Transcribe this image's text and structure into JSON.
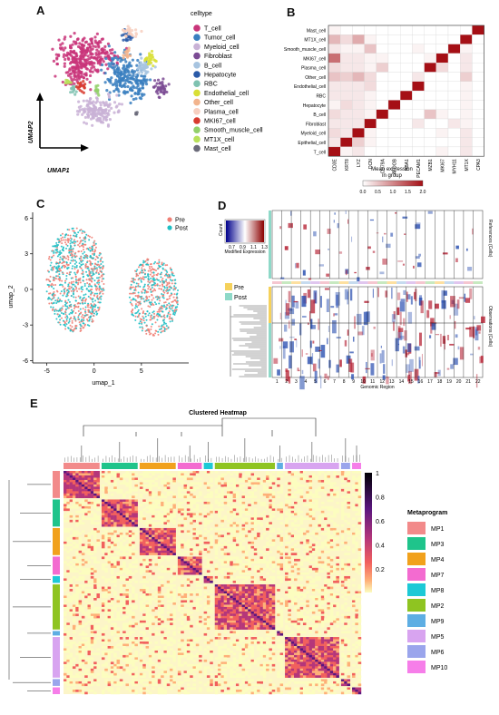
{
  "panels": {
    "a": "A",
    "b": "B",
    "c": "C",
    "d": "D",
    "e": "E"
  },
  "panel_a": {
    "legend_title": "celltype",
    "xlabel": "UMAP1",
    "ylabel": "UMAP2",
    "celltypes": [
      {
        "label": "T_cell",
        "color": "#c9357a"
      },
      {
        "label": "Tumor_cell",
        "color": "#3a7fbf"
      },
      {
        "label": "Myeloid_cell",
        "color": "#c9b2d6"
      },
      {
        "label": "Fibroblast",
        "color": "#7b4b94"
      },
      {
        "label": "B_cell",
        "color": "#a7c4e0"
      },
      {
        "label": "Hepatocyte",
        "color": "#2a5aa8"
      },
      {
        "label": "RBC",
        "color": "#7fc2b0"
      },
      {
        "label": "Endothelial_cell",
        "color": "#d9df35"
      },
      {
        "label": "Other_cell",
        "color": "#f2b48d"
      },
      {
        "label": "Plasma_cell",
        "color": "#f7cfc0"
      },
      {
        "label": "MKI67_cell",
        "color": "#d83b2f"
      },
      {
        "label": "Smooth_muscle_cell",
        "color": "#93d06a"
      },
      {
        "label": "MT1X_cell",
        "color": "#b8e15a"
      },
      {
        "label": "Mast_cell",
        "color": "#6b6b7a"
      }
    ]
  },
  "chart_data": [
    {
      "type": "heatmap",
      "panel": "B",
      "rows": [
        "Mast_cell",
        "MT1X_cell",
        "Smooth_muscle_cell",
        "MKI67_cell",
        "Plasma_cell",
        "Other_cell",
        "Endothelial_cell",
        "RBC",
        "Hepatocyte",
        "B_cell",
        "Fibroblast",
        "Myeloid_cell",
        "Epithelial_cell",
        "T_cell"
      ],
      "columns": [
        "CD3E",
        "KRT8",
        "LYZ",
        "DCN",
        "CD79A",
        "ALDOB",
        "HBA1",
        "PECAM1",
        "MZB1",
        "MKI67",
        "MYH11",
        "MT1X",
        "CPA3"
      ],
      "values": [
        [
          0.1,
          0,
          0,
          0,
          0,
          0,
          0,
          0,
          0,
          0,
          0,
          0,
          2.0
        ],
        [
          0.6,
          0.3,
          0.7,
          0.1,
          0,
          0,
          0,
          0,
          0,
          0,
          0,
          2.0,
          0
        ],
        [
          0.2,
          0.1,
          0.1,
          0.5,
          0,
          0,
          0,
          0.1,
          0,
          0,
          2.0,
          0.1,
          0
        ],
        [
          1.2,
          0.2,
          0.2,
          0.1,
          0.1,
          0,
          0,
          0,
          0.1,
          2.0,
          0,
          0.2,
          0
        ],
        [
          0.3,
          0.2,
          0.2,
          0.1,
          0.4,
          0,
          0,
          0,
          2.0,
          0.3,
          0,
          0.2,
          0
        ],
        [
          0.5,
          0.4,
          0.6,
          0.3,
          0,
          0,
          0,
          0.2,
          0,
          0,
          0,
          0.4,
          0
        ],
        [
          0.2,
          0.2,
          0.2,
          0.3,
          0,
          0,
          0,
          2.0,
          0,
          0,
          0,
          0.1,
          0
        ],
        [
          0.2,
          0.2,
          0.2,
          0.1,
          0,
          0,
          2.0,
          0,
          0,
          0,
          0,
          0.1,
          0
        ],
        [
          0.1,
          0.3,
          0.2,
          0.1,
          0,
          2.0,
          0,
          0,
          0,
          0,
          0,
          0.1,
          0
        ],
        [
          0.3,
          0.2,
          0.2,
          0.1,
          2.0,
          0,
          0,
          0,
          0.5,
          0.1,
          0,
          0.1,
          0
        ],
        [
          0.2,
          0.2,
          0.2,
          2.0,
          0,
          0,
          0,
          0.2,
          0,
          0,
          0.2,
          0.1,
          0
        ],
        [
          0.3,
          0.2,
          2.0,
          0.1,
          0,
          0,
          0,
          0,
          0,
          0.1,
          0,
          0.2,
          0
        ],
        [
          0.2,
          2.0,
          0.4,
          0.1,
          0,
          0,
          0,
          0,
          0,
          0,
          0,
          0.2,
          0
        ],
        [
          2.0,
          0.1,
          0.2,
          0,
          0,
          0,
          0,
          0,
          0,
          0.1,
          0,
          0.2,
          0
        ]
      ],
      "colorbar_title": [
        "Mean expression",
        "in group"
      ],
      "colorbar_ticks": [
        "0.0",
        "0.5",
        "1.0",
        "1.5",
        "2.0"
      ],
      "range": [
        0,
        2
      ]
    },
    {
      "type": "scatter",
      "panel": "C",
      "xlabel": "umap_1",
      "ylabel": "umap_2",
      "xlim": [
        -6.5,
        10
      ],
      "ylim": [
        -6.2,
        6.5
      ],
      "xticks": [
        "-5",
        "0",
        "5"
      ],
      "yticks": [
        "-6",
        "-3",
        "0",
        "3",
        "6"
      ],
      "series": [
        {
          "name": "Pre",
          "color": "#f07f75"
        },
        {
          "name": "Post",
          "color": "#1fbfc4"
        }
      ],
      "clusters": [
        {
          "cx": -2.0,
          "cy": 0.8,
          "rx": 3.1,
          "ry": 4.4
        },
        {
          "cx": 6.3,
          "cy": -0.6,
          "rx": 2.6,
          "ry": 3.3
        }
      ]
    },
    {
      "type": "heatmap",
      "panel": "D",
      "xlabel": "Genomic Region",
      "chromosomes": [
        "1",
        "2",
        "3",
        "4",
        "5",
        "6",
        "7",
        "8",
        "9",
        "10",
        "11",
        "12",
        "13",
        "14",
        "15",
        "16",
        "17",
        "18",
        "19",
        "20",
        "21",
        "22"
      ],
      "top_label": "References (Cells)",
      "bottom_label": "Observations (Cells)",
      "groups": [
        "Pre",
        "Post"
      ],
      "group_colors": [
        "#f5d15b",
        "#8ed9c8"
      ],
      "colorkey_ticks": [
        "0.7",
        "0.9",
        "1.1",
        "1.3"
      ],
      "colorkey_xlabel": "Modified Expression",
      "colorkey_ylabel": "Count"
    },
    {
      "type": "heatmap",
      "panel": "E",
      "title": "Clustered Heatmap",
      "colorbar_ticks": [
        "1",
        "0.8",
        "0.6",
        "0.4",
        "0.2"
      ],
      "legend_title": "Metaprogram",
      "metaprograms": [
        {
          "name": "MP1",
          "color": "#f28a8a",
          "size": 12
        },
        {
          "name": "MP3",
          "color": "#1fc48b",
          "size": 12
        },
        {
          "name": "MP4",
          "color": "#f1a11c",
          "size": 12
        },
        {
          "name": "MP7",
          "color": "#f36bd0",
          "size": 8
        },
        {
          "name": "MP8",
          "color": "#1dc9d6",
          "size": 3
        },
        {
          "name": "MP2",
          "color": "#8fc421",
          "size": 20
        },
        {
          "name": "MP9",
          "color": "#5eaee3",
          "size": 2
        },
        {
          "name": "MP5",
          "color": "#d8a4f0",
          "size": 18
        },
        {
          "name": "MP6",
          "color": "#9aa5ec",
          "size": 3
        },
        {
          "name": "MP10",
          "color": "#f67ee9",
          "size": 3
        }
      ]
    }
  ]
}
